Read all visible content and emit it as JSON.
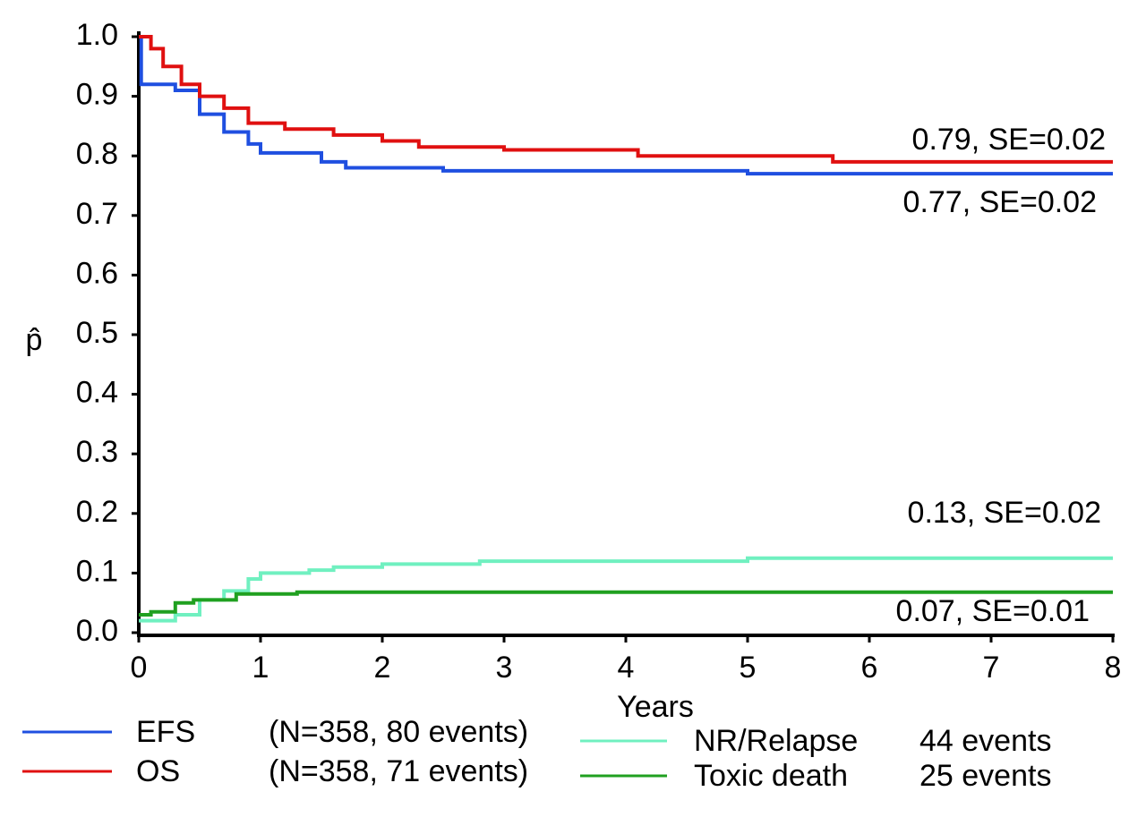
{
  "chart_data": {
    "type": "line",
    "step": true,
    "xlabel": "Years",
    "ylabel": "p̂",
    "xlim": [
      0,
      8
    ],
    "ylim": [
      0,
      1
    ],
    "xticks": [
      0,
      1,
      2,
      3,
      4,
      5,
      6,
      7,
      8
    ],
    "yticks": [
      {
        "value": 0,
        "label": "0.0"
      },
      0.1,
      0.2,
      0.3,
      0.4,
      0.5,
      0.6,
      0.7,
      0.8,
      0.9,
      {
        "value": 1,
        "label": "1.0"
      }
    ],
    "series": [
      {
        "name": "EFS",
        "description": "(N=358, 80 events)",
        "color": "#1f4fe0",
        "x": [
          0,
          0.02,
          0.3,
          0.5,
          0.7,
          0.9,
          1.0,
          1.5,
          1.7,
          2.5,
          5,
          8
        ],
        "values": [
          1.0,
          0.92,
          0.91,
          0.87,
          0.84,
          0.82,
          0.805,
          0.79,
          0.78,
          0.775,
          0.77,
          0.77
        ]
      },
      {
        "name": "OS",
        "description": "(N=358, 71 events)",
        "color": "#e01010",
        "x": [
          0,
          0.1,
          0.2,
          0.35,
          0.5,
          0.7,
          0.9,
          1.2,
          1.6,
          2,
          2.3,
          3,
          4.1,
          5.7,
          8
        ],
        "values": [
          1.0,
          0.98,
          0.95,
          0.92,
          0.9,
          0.88,
          0.855,
          0.845,
          0.835,
          0.825,
          0.815,
          0.81,
          0.8,
          0.79,
          0.79
        ]
      },
      {
        "name": "NR/Relapse",
        "description": "44 events",
        "color": "#70f0c0",
        "x": [
          0,
          0.3,
          0.5,
          0.7,
          0.9,
          1.0,
          1.4,
          1.6,
          2,
          2.8,
          5,
          8
        ],
        "values": [
          0.02,
          0.03,
          0.055,
          0.07,
          0.09,
          0.1,
          0.105,
          0.11,
          0.115,
          0.12,
          0.125,
          0.125
        ]
      },
      {
        "name": "Toxic death",
        "description": "25 events",
        "color": "#20a020",
        "x": [
          0,
          0.1,
          0.3,
          0.45,
          0.8,
          1.3,
          8
        ],
        "values": [
          0.03,
          0.035,
          0.05,
          0.055,
          0.065,
          0.068,
          0.068
        ]
      }
    ],
    "annotations": [
      "0.79, SE=0.02",
      "0.77, SE=0.02",
      "0.13, SE=0.02",
      "0.07, SE=0.01"
    ]
  }
}
